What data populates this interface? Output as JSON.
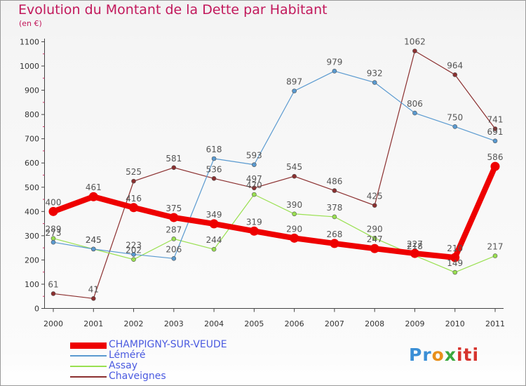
{
  "chart_data": {
    "type": "line",
    "title": "Evolution du Montant de la Dette par Habitant",
    "subtitle": "(en €)",
    "categories": [
      "2000",
      "2001",
      "2002",
      "2003",
      "2004",
      "2005",
      "2006",
      "2007",
      "2008",
      "2009",
      "2010",
      "2011"
    ],
    "ylim": [
      0,
      1100
    ],
    "yticks": [
      0,
      100,
      200,
      300,
      400,
      500,
      600,
      700,
      800,
      900,
      1000,
      1100
    ],
    "grid": false,
    "legend_position": "bottom-left",
    "series": [
      {
        "name": "CHAMPIGNY-SUR-VEUDE",
        "color": "#ee0000",
        "values": [
          400,
          461,
          416,
          375,
          349,
          319,
          290,
          268,
          247,
          227,
          210,
          586
        ]
      },
      {
        "name": "Léméré",
        "color": "#5a9ad0",
        "values": [
          273,
          245,
          223,
          206,
          618,
          593,
          897,
          979,
          932,
          806,
          750,
          691
        ]
      },
      {
        "name": "Assay",
        "color": "#99e050",
        "values": [
          289,
          245,
          202,
          287,
          244,
          470,
          390,
          378,
          290,
          218,
          149,
          217
        ]
      },
      {
        "name": "Chaveignes",
        "color": "#8b2f2f",
        "values": [
          61,
          41,
          525,
          581,
          536,
          497,
          545,
          486,
          425,
          1062,
          964,
          741
        ]
      }
    ]
  },
  "logo": {
    "p1": "Pr",
    "p2": "o",
    "p3": "x",
    "p4": "iti"
  }
}
